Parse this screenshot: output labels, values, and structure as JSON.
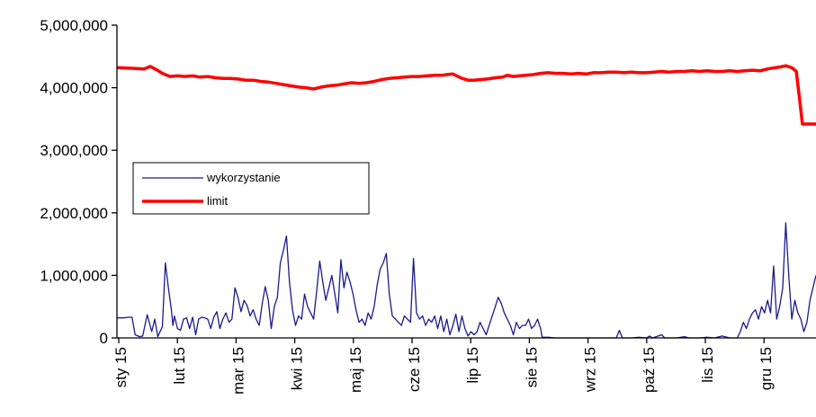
{
  "chart_data": {
    "type": "line",
    "title": "",
    "xlabel": "",
    "ylabel": "",
    "ylim": [
      0,
      5000000
    ],
    "yticks": [
      0,
      1000000,
      2000000,
      3000000,
      4000000,
      5000000
    ],
    "ytick_labels": [
      "0",
      "1,000,000",
      "2,000,000",
      "3,000,000",
      "4,000,000",
      "5,000,000"
    ],
    "xtick_labels": [
      "sty 15",
      "lut 15",
      "mar 15",
      "kwi 15",
      "maj 15",
      "cze 15",
      "lip 15",
      "sie 15",
      "wrz 15",
      "paź 15",
      "lis 15",
      "gru 15"
    ],
    "grid": false,
    "legend_position": "left",
    "legend": [
      "wykorzystanie",
      "limit"
    ],
    "series": [
      {
        "name": "wykorzystanie",
        "color": "#1a1a8c",
        "points": [
          [
            0,
            320000
          ],
          [
            4,
            320000
          ],
          [
            8,
            330000
          ],
          [
            10,
            330000
          ],
          [
            12,
            50000
          ],
          [
            15,
            20000
          ],
          [
            17,
            30000
          ],
          [
            20,
            370000
          ],
          [
            23,
            100000
          ],
          [
            25,
            300000
          ],
          [
            27,
            20000
          ],
          [
            30,
            180000
          ],
          [
            32,
            1200000
          ],
          [
            34,
            800000
          ],
          [
            36,
            450000
          ],
          [
            37,
            200000
          ],
          [
            38,
            350000
          ],
          [
            40,
            150000
          ],
          [
            42,
            120000
          ],
          [
            44,
            300000
          ],
          [
            46,
            320000
          ],
          [
            48,
            150000
          ],
          [
            50,
            330000
          ],
          [
            52,
            50000
          ],
          [
            54,
            300000
          ],
          [
            56,
            330000
          ],
          [
            58,
            320000
          ],
          [
            60,
            300000
          ],
          [
            62,
            150000
          ],
          [
            64,
            330000
          ],
          [
            66,
            420000
          ],
          [
            68,
            150000
          ],
          [
            70,
            300000
          ],
          [
            72,
            400000
          ],
          [
            74,
            250000
          ],
          [
            76,
            300000
          ],
          [
            78,
            800000
          ],
          [
            80,
            650000
          ],
          [
            82,
            420000
          ],
          [
            84,
            600000
          ],
          [
            86,
            520000
          ],
          [
            88,
            350000
          ],
          [
            90,
            450000
          ],
          [
            92,
            300000
          ],
          [
            94,
            200000
          ],
          [
            96,
            550000
          ],
          [
            98,
            820000
          ],
          [
            100,
            600000
          ],
          [
            102,
            150000
          ],
          [
            104,
            500000
          ],
          [
            106,
            650000
          ],
          [
            108,
            1200000
          ],
          [
            110,
            1400000
          ],
          [
            112,
            1630000
          ],
          [
            114,
            900000
          ],
          [
            116,
            450000
          ],
          [
            118,
            200000
          ],
          [
            120,
            350000
          ],
          [
            122,
            300000
          ],
          [
            124,
            700000
          ],
          [
            126,
            500000
          ],
          [
            128,
            400000
          ],
          [
            130,
            300000
          ],
          [
            132,
            750000
          ],
          [
            134,
            1230000
          ],
          [
            136,
            900000
          ],
          [
            138,
            600000
          ],
          [
            140,
            800000
          ],
          [
            142,
            1000000
          ],
          [
            144,
            700000
          ],
          [
            146,
            400000
          ],
          [
            148,
            1250000
          ],
          [
            150,
            800000
          ],
          [
            152,
            1050000
          ],
          [
            154,
            900000
          ],
          [
            156,
            700000
          ],
          [
            158,
            450000
          ],
          [
            160,
            250000
          ],
          [
            162,
            300000
          ],
          [
            164,
            200000
          ],
          [
            166,
            400000
          ],
          [
            168,
            300000
          ],
          [
            170,
            500000
          ],
          [
            172,
            850000
          ],
          [
            174,
            1100000
          ],
          [
            176,
            1200000
          ],
          [
            178,
            1350000
          ],
          [
            180,
            700000
          ],
          [
            182,
            350000
          ],
          [
            184,
            300000
          ],
          [
            186,
            250000
          ],
          [
            188,
            200000
          ],
          [
            190,
            350000
          ],
          [
            192,
            300000
          ],
          [
            194,
            250000
          ],
          [
            196,
            1270000
          ],
          [
            198,
            400000
          ],
          [
            200,
            300000
          ],
          [
            202,
            350000
          ],
          [
            204,
            200000
          ],
          [
            206,
            300000
          ],
          [
            208,
            250000
          ],
          [
            210,
            350000
          ],
          [
            212,
            150000
          ],
          [
            214,
            350000
          ],
          [
            216,
            100000
          ],
          [
            218,
            300000
          ],
          [
            220,
            50000
          ],
          [
            222,
            200000
          ],
          [
            224,
            380000
          ],
          [
            226,
            100000
          ],
          [
            228,
            350000
          ],
          [
            230,
            150000
          ],
          [
            232,
            30000
          ],
          [
            234,
            100000
          ],
          [
            236,
            50000
          ],
          [
            238,
            100000
          ],
          [
            240,
            250000
          ],
          [
            242,
            150000
          ],
          [
            244,
            50000
          ],
          [
            246,
            200000
          ],
          [
            248,
            350000
          ],
          [
            250,
            500000
          ],
          [
            252,
            650000
          ],
          [
            254,
            550000
          ],
          [
            256,
            400000
          ],
          [
            258,
            300000
          ],
          [
            260,
            200000
          ],
          [
            262,
            50000
          ],
          [
            264,
            250000
          ],
          [
            266,
            150000
          ],
          [
            268,
            200000
          ],
          [
            270,
            200000
          ],
          [
            272,
            300000
          ],
          [
            274,
            150000
          ],
          [
            276,
            200000
          ],
          [
            278,
            300000
          ],
          [
            280,
            150000
          ],
          [
            281,
            10000
          ],
          [
            285,
            10000
          ],
          [
            290,
            0
          ],
          [
            300,
            0
          ],
          [
            310,
            0
          ],
          [
            320,
            0
          ],
          [
            330,
            0
          ],
          [
            332,
            120000
          ],
          [
            334,
            0
          ],
          [
            340,
            0
          ],
          [
            345,
            10000
          ],
          [
            350,
            0
          ],
          [
            352,
            30000
          ],
          [
            354,
            0
          ],
          [
            360,
            50000
          ],
          [
            362,
            0
          ],
          [
            370,
            0
          ],
          [
            375,
            20000
          ],
          [
            378,
            0
          ],
          [
            385,
            0
          ],
          [
            390,
            10000
          ],
          [
            395,
            0
          ],
          [
            400,
            30000
          ],
          [
            405,
            0
          ],
          [
            410,
            0
          ],
          [
            412,
            100000
          ],
          [
            414,
            250000
          ],
          [
            416,
            150000
          ],
          [
            418,
            300000
          ],
          [
            420,
            400000
          ],
          [
            422,
            450000
          ],
          [
            424,
            300000
          ],
          [
            426,
            500000
          ],
          [
            428,
            400000
          ],
          [
            430,
            600000
          ],
          [
            432,
            400000
          ],
          [
            434,
            1150000
          ],
          [
            436,
            300000
          ],
          [
            438,
            500000
          ],
          [
            440,
            800000
          ],
          [
            442,
            1840000
          ],
          [
            444,
            1000000
          ],
          [
            446,
            300000
          ],
          [
            448,
            600000
          ],
          [
            450,
            400000
          ],
          [
            452,
            300000
          ],
          [
            454,
            100000
          ],
          [
            456,
            250000
          ],
          [
            458,
            600000
          ],
          [
            460,
            800000
          ],
          [
            462,
            1000000
          ]
        ]
      },
      {
        "name": "limit",
        "color": "#ff0000",
        "points": [
          [
            0,
            4320000
          ],
          [
            10,
            4310000
          ],
          [
            18,
            4300000
          ],
          [
            22,
            4340000
          ],
          [
            26,
            4290000
          ],
          [
            30,
            4230000
          ],
          [
            35,
            4180000
          ],
          [
            40,
            4190000
          ],
          [
            45,
            4180000
          ],
          [
            50,
            4190000
          ],
          [
            55,
            4170000
          ],
          [
            60,
            4180000
          ],
          [
            65,
            4160000
          ],
          [
            70,
            4150000
          ],
          [
            75,
            4150000
          ],
          [
            80,
            4140000
          ],
          [
            85,
            4120000
          ],
          [
            90,
            4120000
          ],
          [
            95,
            4100000
          ],
          [
            100,
            4090000
          ],
          [
            105,
            4070000
          ],
          [
            110,
            4050000
          ],
          [
            115,
            4030000
          ],
          [
            120,
            4010000
          ],
          [
            125,
            4000000
          ],
          [
            130,
            3980000
          ],
          [
            135,
            4010000
          ],
          [
            140,
            4030000
          ],
          [
            145,
            4040000
          ],
          [
            150,
            4060000
          ],
          [
            155,
            4080000
          ],
          [
            160,
            4070000
          ],
          [
            165,
            4080000
          ],
          [
            170,
            4100000
          ],
          [
            175,
            4130000
          ],
          [
            180,
            4150000
          ],
          [
            185,
            4160000
          ],
          [
            190,
            4170000
          ],
          [
            195,
            4180000
          ],
          [
            200,
            4180000
          ],
          [
            205,
            4190000
          ],
          [
            210,
            4200000
          ],
          [
            215,
            4200000
          ],
          [
            218,
            4210000
          ],
          [
            222,
            4220000
          ],
          [
            228,
            4150000
          ],
          [
            232,
            4120000
          ],
          [
            236,
            4120000
          ],
          [
            240,
            4130000
          ],
          [
            245,
            4140000
          ],
          [
            250,
            4160000
          ],
          [
            255,
            4170000
          ],
          [
            258,
            4200000
          ],
          [
            262,
            4180000
          ],
          [
            266,
            4190000
          ],
          [
            270,
            4200000
          ],
          [
            275,
            4210000
          ],
          [
            280,
            4230000
          ],
          [
            285,
            4240000
          ],
          [
            290,
            4230000
          ],
          [
            295,
            4230000
          ],
          [
            300,
            4220000
          ],
          [
            305,
            4230000
          ],
          [
            310,
            4220000
          ],
          [
            315,
            4240000
          ],
          [
            320,
            4240000
          ],
          [
            325,
            4250000
          ],
          [
            330,
            4250000
          ],
          [
            335,
            4240000
          ],
          [
            340,
            4250000
          ],
          [
            345,
            4240000
          ],
          [
            350,
            4240000
          ],
          [
            355,
            4250000
          ],
          [
            360,
            4260000
          ],
          [
            365,
            4250000
          ],
          [
            370,
            4260000
          ],
          [
            375,
            4260000
          ],
          [
            380,
            4270000
          ],
          [
            385,
            4260000
          ],
          [
            390,
            4270000
          ],
          [
            395,
            4260000
          ],
          [
            400,
            4260000
          ],
          [
            405,
            4270000
          ],
          [
            410,
            4260000
          ],
          [
            415,
            4270000
          ],
          [
            420,
            4280000
          ],
          [
            425,
            4270000
          ],
          [
            430,
            4300000
          ],
          [
            435,
            4320000
          ],
          [
            438,
            4330000
          ],
          [
            442,
            4350000
          ],
          [
            446,
            4320000
          ],
          [
            449,
            4260000
          ],
          [
            451,
            3850000
          ],
          [
            453,
            3420000
          ],
          [
            456,
            3420000
          ],
          [
            462,
            3420000
          ]
        ]
      }
    ]
  }
}
